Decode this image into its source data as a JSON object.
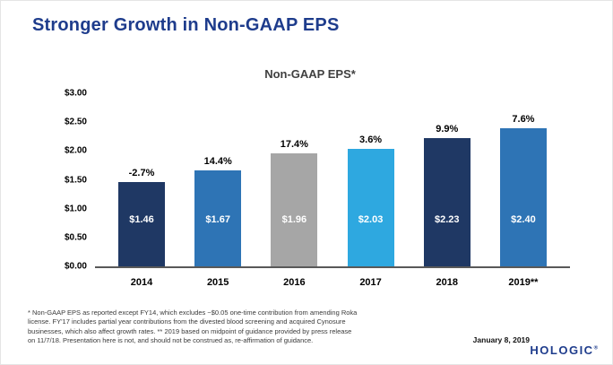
{
  "slide": {
    "title": "Stronger Growth in Non-GAAP EPS",
    "footnote_lines": [
      "* Non-GAAP EPS as reported except FY14, which excludes ~$0.05 one-time contribution from amending Roka",
      "license. FY'17 includes partial year contributions from the divested blood screening and acquired Cynosure",
      "businesses, which also affect growth rates. ** 2019 based on midpoint of guidance provided by press release",
      "on 11/7/18.  Presentation here is not, and should not be construed as, re-affirmation of guidance."
    ],
    "date": "January 8, 2019",
    "logo_text": "HOLOGIC",
    "logo_mark": "®"
  },
  "chart_data": {
    "type": "bar",
    "title": "Non-GAAP EPS*",
    "categories": [
      "2014",
      "2015",
      "2016",
      "2017",
      "2018",
      "2019**"
    ],
    "values": [
      1.46,
      1.67,
      1.96,
      2.03,
      2.23,
      2.4
    ],
    "value_labels": [
      "$1.46",
      "$1.67",
      "$1.96",
      "$2.03",
      "$2.23",
      "$2.40"
    ],
    "growth_labels": [
      "-2.7%",
      "14.4%",
      "17.4%",
      "3.6%",
      "9.9%",
      "7.6%"
    ],
    "bar_colors": [
      "#1f3864",
      "#2e74b5",
      "#a6a6a6",
      "#2ea8e0",
      "#1f3864",
      "#2e74b5"
    ],
    "xlabel": "",
    "ylabel": "",
    "ylim": [
      0,
      3
    ],
    "ytick_labels": [
      "$3.00",
      "$2.50",
      "$2.00",
      "$1.50",
      "$1.00",
      "$0.50",
      "$0.00"
    ],
    "grid": false,
    "legend": "none"
  },
  "colors": {
    "title_blue": "#1e3c8c",
    "navy_bar": "#1f3864",
    "blue_bar": "#2e74b5",
    "gray_bar": "#a6a6a6",
    "lightblue_bar": "#2ea8e0",
    "logo_blue": "#1e3c8c"
  }
}
